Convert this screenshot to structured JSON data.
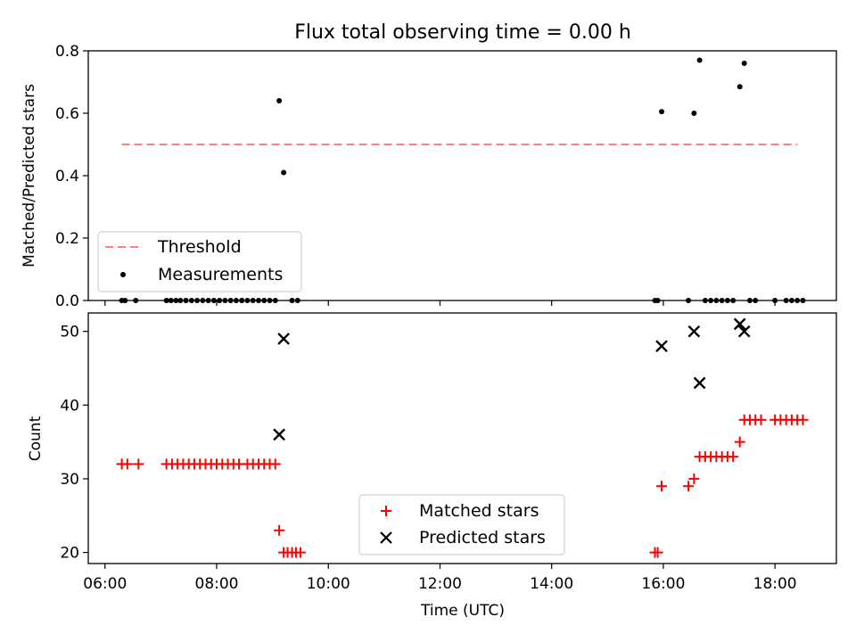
{
  "chart_data": [
    {
      "type": "scatter",
      "title": "Flux total observing time = 0.00 h",
      "xlabel": "",
      "ylabel": "Matched/Predicted stars",
      "xlim": [
        5.7,
        19.1
      ],
      "ylim": [
        0,
        0.8
      ],
      "yticks": [
        0,
        0.2,
        0.4,
        0.6,
        0.8
      ],
      "ytick_labels": [
        "0.0",
        "0.2",
        "0.4",
        "0.6",
        "0.8"
      ],
      "legend_position": "lower-left",
      "threshold": {
        "name": "Threshold",
        "value": 0.5,
        "x_range": [
          6.3,
          18.4
        ],
        "color": "#ff7f7f"
      },
      "series": [
        {
          "name": "Measurements",
          "color": "#000000",
          "marker": "dot",
          "x": [
            6.3,
            6.36,
            6.55,
            7.1,
            7.18,
            7.27,
            7.35,
            7.45,
            7.55,
            7.65,
            7.75,
            7.85,
            7.95,
            8.05,
            8.15,
            8.25,
            8.35,
            8.45,
            8.55,
            8.65,
            8.75,
            8.85,
            8.95,
            9.05,
            9.12,
            9.2,
            9.35,
            9.45,
            15.85,
            15.9,
            15.97,
            16.45,
            16.55,
            16.65,
            16.75,
            16.85,
            16.95,
            17.05,
            17.15,
            17.25,
            17.37,
            17.45,
            17.55,
            17.65,
            18.0,
            18.2,
            18.3,
            18.4,
            18.5
          ],
          "y": [
            0,
            0,
            0,
            0,
            0,
            0,
            0,
            0,
            0,
            0,
            0,
            0,
            0,
            0,
            0,
            0,
            0,
            0,
            0,
            0,
            0,
            0,
            0,
            0,
            0.64,
            0.41,
            0,
            0,
            0,
            0,
            0.605,
            0,
            0.6,
            0.77,
            0,
            0,
            0,
            0,
            0,
            0,
            0.685,
            0.76,
            0,
            0,
            0,
            0,
            0,
            0,
            0
          ]
        }
      ]
    },
    {
      "type": "scatter",
      "title": "",
      "xlabel": "Time (UTC)",
      "ylabel": "Count",
      "xlim": [
        5.7,
        19.1
      ],
      "ylim": [
        18.5,
        52.5
      ],
      "yticks": [
        20,
        30,
        40,
        50
      ],
      "xticks": [
        6,
        8,
        10,
        12,
        14,
        16,
        18
      ],
      "xtick_labels": [
        "06:00",
        "08:00",
        "10:00",
        "12:00",
        "14:00",
        "16:00",
        "18:00"
      ],
      "legend_position": "lower-center",
      "series": [
        {
          "name": "Matched stars",
          "color": "#ff0000",
          "marker": "plus",
          "x": [
            6.3,
            6.4,
            6.6,
            7.1,
            7.2,
            7.3,
            7.4,
            7.5,
            7.6,
            7.7,
            7.8,
            7.9,
            8.0,
            8.1,
            8.2,
            8.3,
            8.4,
            8.55,
            8.65,
            8.75,
            8.85,
            8.95,
            9.05,
            9.12,
            9.2,
            9.27,
            9.35,
            9.42,
            9.5,
            15.85,
            15.9,
            15.97,
            16.45,
            16.55,
            16.65,
            16.75,
            16.85,
            16.95,
            17.05,
            17.15,
            17.25,
            17.37,
            17.45,
            17.55,
            17.65,
            17.75,
            18.0,
            18.1,
            18.2,
            18.3,
            18.4,
            18.5
          ],
          "y": [
            32,
            32,
            32,
            32,
            32,
            32,
            32,
            32,
            32,
            32,
            32,
            32,
            32,
            32,
            32,
            32,
            32,
            32,
            32,
            32,
            32,
            32,
            32,
            23,
            20,
            20,
            20,
            20,
            20,
            20,
            20,
            29,
            29,
            30,
            33,
            33,
            33,
            33,
            33,
            33,
            33,
            35,
            38,
            38,
            38,
            38,
            38,
            38,
            38,
            38,
            38,
            38
          ]
        },
        {
          "name": "Predicted stars",
          "color": "#000000",
          "marker": "x",
          "x": [
            9.12,
            9.2,
            15.97,
            16.55,
            16.65,
            17.37,
            17.45
          ],
          "y": [
            36,
            49,
            48,
            50,
            43,
            51,
            50
          ]
        }
      ]
    }
  ]
}
